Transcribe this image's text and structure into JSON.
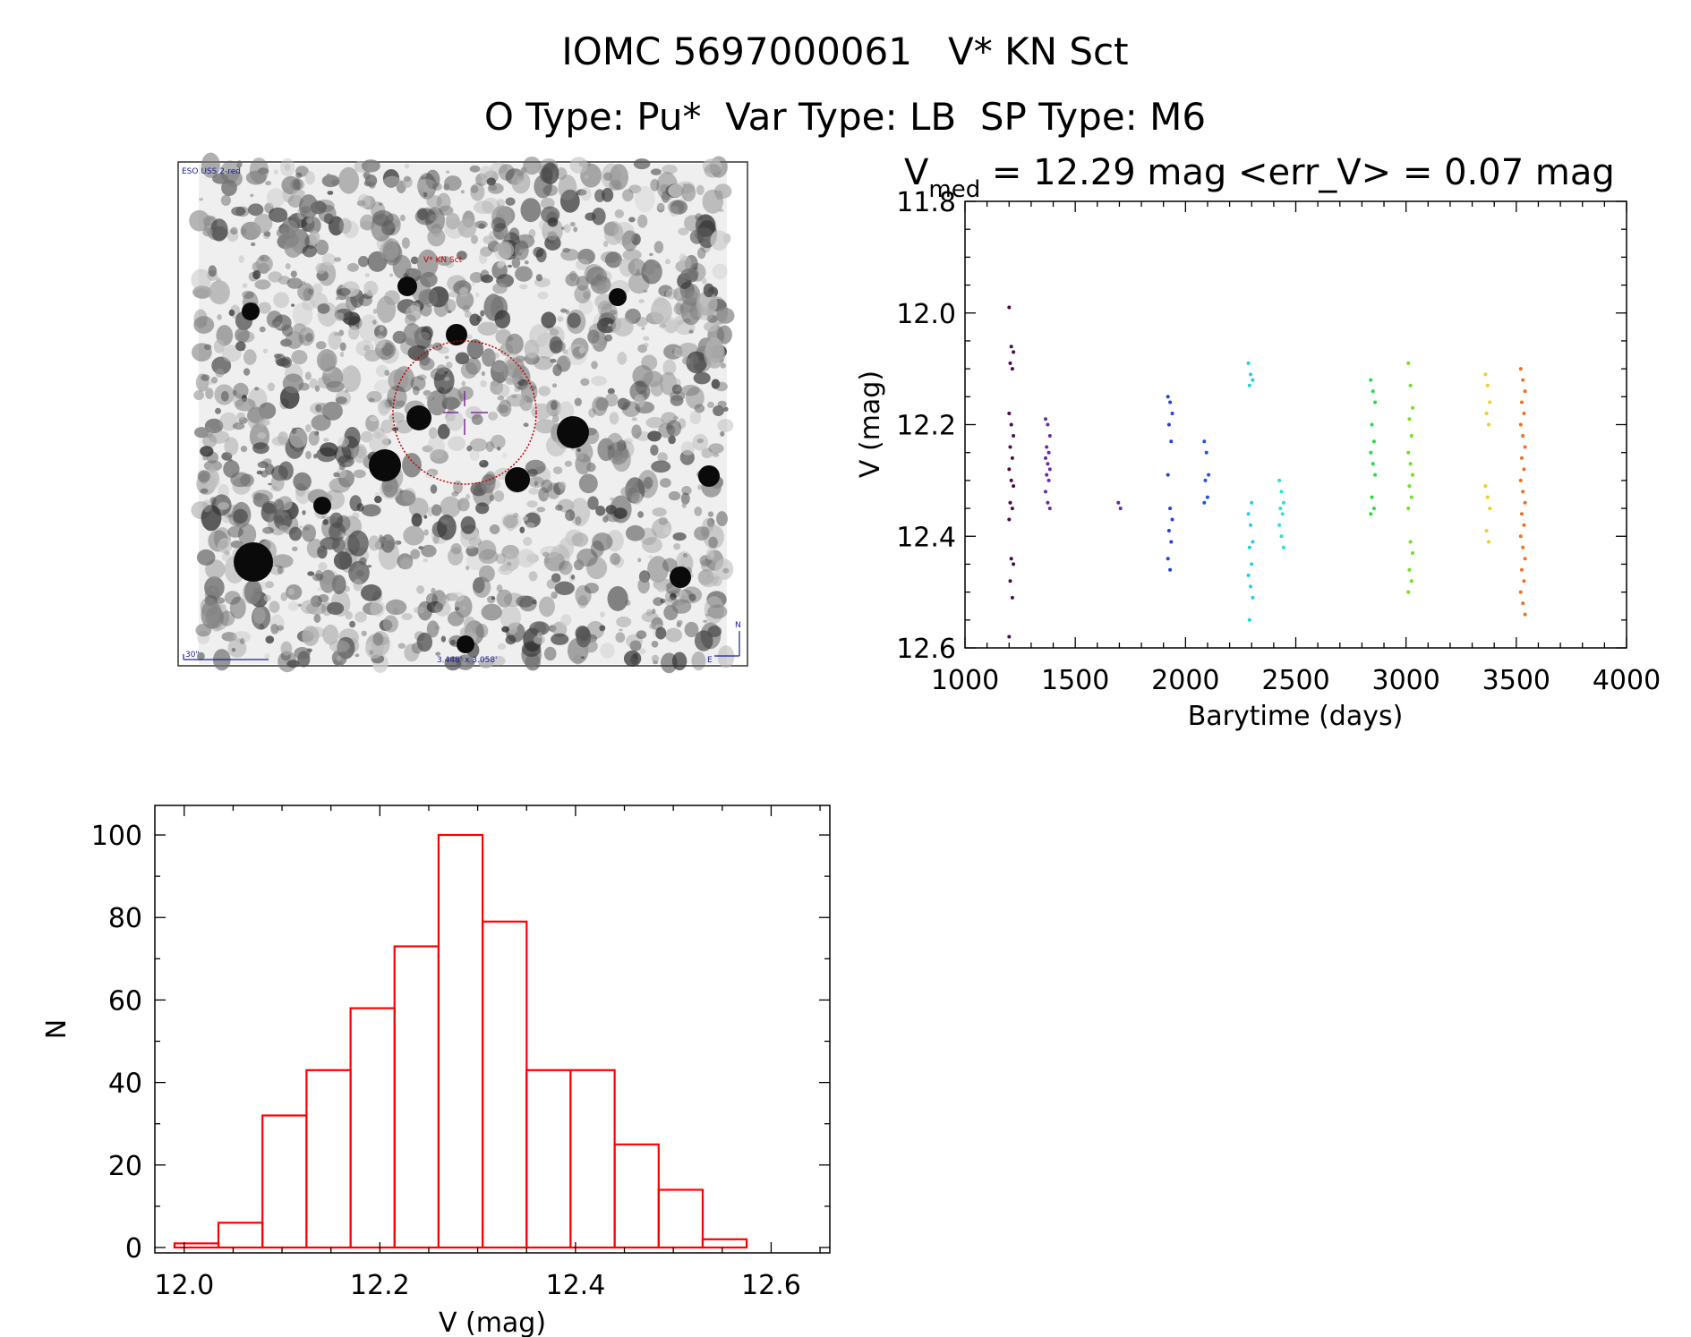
{
  "header": {
    "title": "IOMC 5697000061   V* KN Sct",
    "subtitle": "O Type: Pu*  Var Type: LB  SP Type: M6"
  },
  "image_panel": {
    "survey_label": "ESO USS 2-red",
    "target_label": "V* KN Sct",
    "scale_label": "30\"",
    "fov_label": "3.448' x 3.058'",
    "north_label": "N",
    "east_label": "E"
  },
  "colors": {
    "histogram": "#ff0000",
    "circle": "#c00000",
    "cross": "#7a2a9a"
  },
  "chart_data": [
    {
      "type": "scatter",
      "title_main": "V",
      "title_sub": "med",
      "title_rest": " = 12.29 mag <err_V> = 0.07 mag",
      "xlabel": "Barytime (days)",
      "ylabel": "V (mag)",
      "xlim": [
        1000,
        4000
      ],
      "ylim": [
        12.6,
        11.8
      ],
      "y_inverted": true,
      "xticks": [
        "1000",
        "1500",
        "2000",
        "2500",
        "3000",
        "3500",
        "4000"
      ],
      "yticks": [
        "11.8",
        "12.0",
        "12.2",
        "12.4",
        "12.6"
      ],
      "groups": [
        {
          "x": 1210,
          "color": "#4a0a4a",
          "y": [
            11.99,
            12.06,
            12.07,
            12.09,
            12.1,
            12.18,
            12.2,
            12.22,
            12.24,
            12.26,
            12.28,
            12.3,
            12.31,
            12.34,
            12.35,
            12.37,
            12.44,
            12.45,
            12.48,
            12.51,
            12.58
          ]
        },
        {
          "x": 1375,
          "color": "#6a2aa0",
          "y": [
            12.19,
            12.2,
            12.22,
            12.24,
            12.25,
            12.26,
            12.27,
            12.28,
            12.29,
            12.3,
            12.32,
            12.34,
            12.35
          ]
        },
        {
          "x": 1705,
          "color": "#5a2ab0",
          "y": [
            12.34,
            12.35
          ]
        },
        {
          "x": 1930,
          "color": "#2040e0",
          "y": [
            12.15,
            12.16,
            12.18,
            12.2,
            12.23,
            12.29,
            12.35,
            12.37,
            12.39,
            12.41,
            12.44,
            12.46
          ]
        },
        {
          "x": 2095,
          "color": "#2050e8",
          "y": [
            12.23,
            12.25,
            12.29,
            12.3,
            12.33,
            12.34
          ]
        },
        {
          "x": 2295,
          "color": "#20d0e0",
          "y": [
            12.09,
            12.11,
            12.12,
            12.13,
            12.34,
            12.36,
            12.38,
            12.41,
            12.42,
            12.45,
            12.47,
            12.49,
            12.51,
            12.55
          ]
        },
        {
          "x": 2435,
          "color": "#30e0d0",
          "y": [
            12.3,
            12.32,
            12.34,
            12.35,
            12.36,
            12.38,
            12.4,
            12.42
          ]
        },
        {
          "x": 2850,
          "color": "#20e040",
          "y": [
            12.12,
            12.14,
            12.16,
            12.2,
            12.23,
            12.25,
            12.27,
            12.29,
            12.33,
            12.35,
            12.36
          ]
        },
        {
          "x": 3020,
          "color": "#70e020",
          "y": [
            12.09,
            12.13,
            12.17,
            12.19,
            12.22,
            12.25,
            12.27,
            12.29,
            12.31,
            12.33,
            12.35,
            12.41,
            12.43,
            12.46,
            12.48,
            12.5
          ]
        },
        {
          "x": 3370,
          "color": "#f0d020",
          "y": [
            12.11,
            12.13,
            12.16,
            12.18,
            12.2,
            12.31,
            12.33,
            12.35,
            12.39,
            12.41
          ]
        },
        {
          "x": 3530,
          "color": "#f07020",
          "y": [
            12.1,
            12.12,
            12.14,
            12.16,
            12.18,
            12.2,
            12.22,
            12.24,
            12.26,
            12.28,
            12.3,
            12.32,
            12.34,
            12.36,
            12.38,
            12.4,
            12.42,
            12.44,
            12.46,
            12.48,
            12.5,
            12.52,
            12.54
          ]
        }
      ]
    },
    {
      "type": "bar",
      "subtype": "histogram",
      "xlabel": "V (mag)",
      "ylabel": "N",
      "xlim": [
        11.97,
        12.66
      ],
      "ylim": [
        0,
        105
      ],
      "xticks": [
        "12.0",
        "12.2",
        "12.4",
        "12.6"
      ],
      "yticks": [
        "0",
        "20",
        "40",
        "60",
        "80",
        "100"
      ],
      "bin_edges": [
        11.99,
        12.035,
        12.08,
        12.125,
        12.17,
        12.215,
        12.26,
        12.305,
        12.35,
        12.395,
        12.44,
        12.485,
        12.53,
        12.575
      ],
      "counts": [
        1,
        6,
        32,
        43,
        58,
        73,
        100,
        79,
        43,
        43,
        25,
        14,
        2
      ]
    }
  ]
}
